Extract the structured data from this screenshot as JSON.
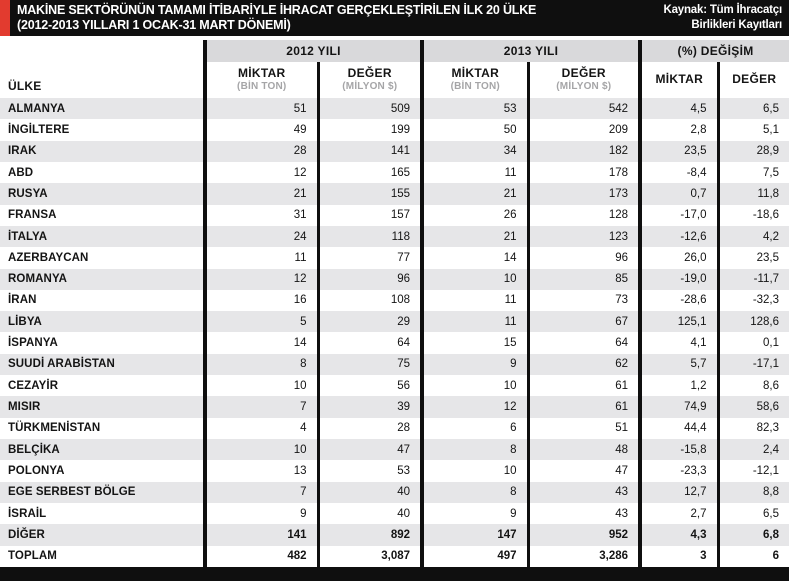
{
  "header": {
    "title_line1": "MAKİNE SEKTÖRÜNÜN TAMAMI İTİBARİYLE İHRACAT GERÇEKLEŞTİRİLEN İLK 20 ÜLKE",
    "title_line2": "(2012-2013 YILLARI 1 OCAK-31 MART DÖNEMİ)",
    "source_line1": "Kaynak: Tüm İhracatçı",
    "source_line2": "Birlikleri Kayıtları"
  },
  "table_header": {
    "country_label": "ÜLKE",
    "groups": [
      {
        "label": "2012 YILI"
      },
      {
        "label": "2013 YILI"
      },
      {
        "label": "(%) DEĞİŞİM"
      }
    ],
    "subcolumns": [
      {
        "title": "MİKTAR",
        "unit": "(BİN TON)"
      },
      {
        "title": "DEĞER",
        "unit": "(MİLYON $)"
      },
      {
        "title": "MİKTAR",
        "unit": "(BİN TON)"
      },
      {
        "title": "DEĞER",
        "unit": "(MİLYON $)"
      },
      {
        "title": "MİKTAR",
        "unit": ""
      },
      {
        "title": "DEĞER",
        "unit": ""
      }
    ]
  },
  "colors": {
    "accent_red": "#e23b2f",
    "bar_black": "#0f0f0f",
    "stripe_gray": "#e6e6e8",
    "band_gray": "#d9d9db",
    "unit_gray": "#a5a5a7"
  },
  "chart_data": {
    "type": "table",
    "title": "MAKİNE SEKTÖRÜNÜN TAMAMI İTİBARİYLE İHRACAT GERÇEKLEŞTİRİLEN İLK 20 ÜLKE (2012-2013 YILLARI 1 OCAK-31 MART DÖNEMİ)",
    "source": "Kaynak: Tüm İhracatçı Birlikleri Kayıtları",
    "columns": [
      "ÜLKE",
      "2012 YILI MİKTAR (BİN TON)",
      "2012 YILI DEĞER (MİLYON $)",
      "2013 YILI MİKTAR (BİN TON)",
      "2013 YILI DEĞER (MİLYON $)",
      "(%) DEĞİŞİM MİKTAR",
      "(%) DEĞİŞİM DEĞER"
    ],
    "rows": [
      [
        "ALMANYA",
        "51",
        "509",
        "53",
        "542",
        "4,5",
        "6,5"
      ],
      [
        "İNGİLTERE",
        "49",
        "199",
        "50",
        "209",
        "2,8",
        "5,1"
      ],
      [
        "IRAK",
        "28",
        "141",
        "34",
        "182",
        "23,5",
        "28,9"
      ],
      [
        "ABD",
        "12",
        "165",
        "11",
        "178",
        "-8,4",
        "7,5"
      ],
      [
        "RUSYA",
        "21",
        "155",
        "21",
        "173",
        "0,7",
        "11,8"
      ],
      [
        "FRANSA",
        "31",
        "157",
        "26",
        "128",
        "-17,0",
        "-18,6"
      ],
      [
        "İTALYA",
        "24",
        "118",
        "21",
        "123",
        "-12,6",
        "4,2"
      ],
      [
        "AZERBAYCAN",
        "11",
        "77",
        "14",
        "96",
        "26,0",
        "23,5"
      ],
      [
        "ROMANYA",
        "12",
        "96",
        "10",
        "85",
        "-19,0",
        "-11,7"
      ],
      [
        "İRAN",
        "16",
        "108",
        "11",
        "73",
        "-28,6",
        "-32,3"
      ],
      [
        "LİBYA",
        "5",
        "29",
        "11",
        "67",
        "125,1",
        "128,6"
      ],
      [
        "İSPANYA",
        "14",
        "64",
        "15",
        "64",
        "4,1",
        "0,1"
      ],
      [
        "SUUDİ ARABİSTAN",
        "8",
        "75",
        "9",
        "62",
        "5,7",
        "-17,1"
      ],
      [
        "CEZAYİR",
        "10",
        "56",
        "10",
        "61",
        "1,2",
        "8,6"
      ],
      [
        "MISIR",
        "7",
        "39",
        "12",
        "61",
        "74,9",
        "58,6"
      ],
      [
        "TÜRKMENİSTAN",
        "4",
        "28",
        "6",
        "51",
        "44,4",
        "82,3"
      ],
      [
        "BELÇİKA",
        "10",
        "47",
        "8",
        "48",
        "-15,8",
        "2,4"
      ],
      [
        "POLONYA",
        "13",
        "53",
        "10",
        "47",
        "-23,3",
        "-12,1"
      ],
      [
        "EGE SERBEST BÖLGE",
        "7",
        "40",
        "8",
        "43",
        "12,7",
        "8,8"
      ],
      [
        "İSRAİL",
        "9",
        "40",
        "9",
        "43",
        "2,7",
        "6,5"
      ],
      [
        "DİĞER",
        "141",
        "892",
        "147",
        "952",
        "4,3",
        "6,8"
      ],
      [
        "TOPLAM",
        "482",
        "3,087",
        "497",
        "3,286",
        "3",
        "6"
      ]
    ],
    "bold_row_labels": [
      "DİĞER",
      "TOPLAM"
    ]
  }
}
